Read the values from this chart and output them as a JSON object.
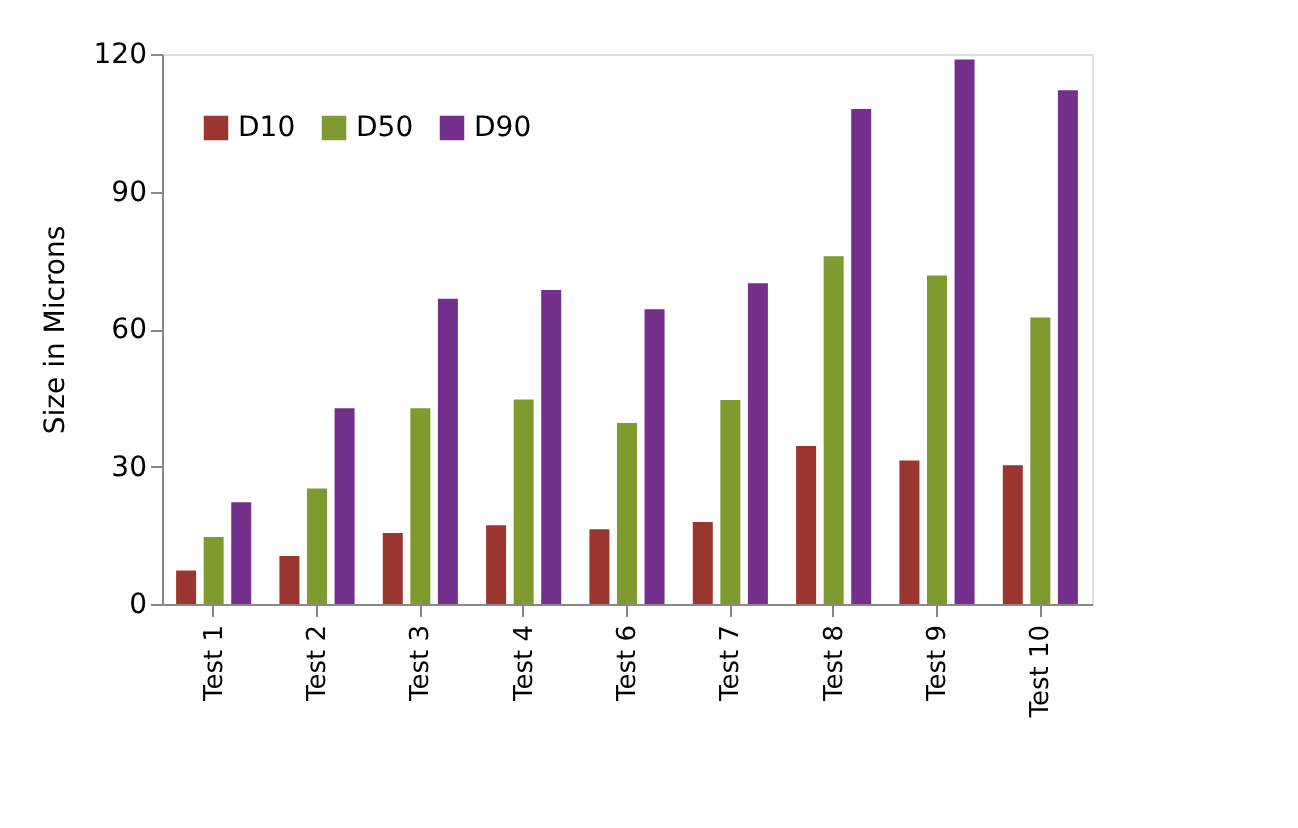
{
  "chart_data": {
    "type": "bar",
    "ylabel": "Size in Microns",
    "categories": [
      "Test 1",
      "Test 2",
      "Test 3",
      "Test 4",
      "Test 6",
      "Test 7",
      "Test 8",
      "Test 9",
      "Test 10"
    ],
    "series": [
      {
        "name": "D10",
        "color": "#9b3530",
        "values": [
          7.3,
          10.5,
          15.5,
          17.2,
          16.3,
          17.9,
          34.5,
          31.3,
          30.3
        ]
      },
      {
        "name": "D50",
        "color": "#7f9a2e",
        "values": [
          14.6,
          25.2,
          42.7,
          44.6,
          39.5,
          44.5,
          75.9,
          71.7,
          62.5
        ]
      },
      {
        "name": "D90",
        "color": "#732f8c",
        "values": [
          22.2,
          42.7,
          66.6,
          68.5,
          64.3,
          70,
          108,
          118.8,
          112.1
        ]
      }
    ],
    "ylim": [
      0,
      120
    ],
    "yticks": [
      0,
      30,
      60,
      90,
      120
    ],
    "grid": false,
    "legend": "top left"
  }
}
